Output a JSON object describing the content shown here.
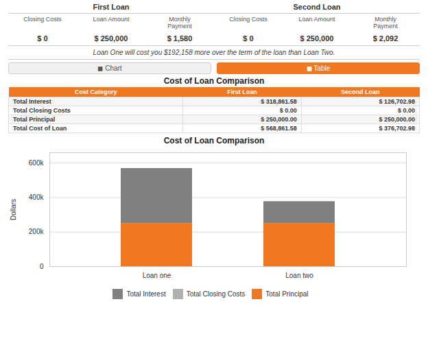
{
  "chart_data": {
    "type": "bar",
    "stacked": true,
    "title": "Cost of Loan Comparison",
    "ylabel": "Dollars",
    "categories": [
      "Loan one",
      "Loan two"
    ],
    "series": [
      {
        "name": "Total Interest",
        "color": "#808080",
        "values": [
          318861.58,
          126702.98
        ]
      },
      {
        "name": "Total Closing Costs",
        "color": "#b0b0b0",
        "values": [
          0.0,
          0.0
        ]
      },
      {
        "name": "Total Principal",
        "color": "#f07820",
        "values": [
          250000.0,
          250000.0
        ]
      }
    ],
    "ylim": [
      0,
      660000
    ],
    "yticks": [
      0,
      {
        "value": 200000,
        "label": "200k"
      },
      {
        "value": 400000,
        "label": "400k"
      },
      {
        "value": 600000,
        "label": "600k"
      }
    ],
    "grid": true,
    "legend": "bottom",
    "annotations": [
      "First Loan",
      "Second Loan",
      "Closing Costs",
      "Loan Amount",
      "Monthly\nPayment",
      "Closing Costs",
      "Loan Amount",
      "Monthly\nPayment",
      "$ 0",
      "$ 250,000",
      "$ 1,580",
      "$ 0",
      "$ 250,000",
      "$ 2,092",
      "Loan One will cost you $192,158 more over the term of the loan than Loan Two.",
      "◼ Chart",
      "◼ Table",
      "Cost of Loan Comparison",
      "Cost Category",
      "First Loan",
      "Second Loan",
      "Total Interest",
      "$ 318,861.58",
      "$ 126,702.98",
      "Total Closing Costs",
      "$ 0.00",
      "$ 0.00",
      "Total Principal",
      "$ 250,000.00",
      "$ 250,000.00",
      "Total Cost of Loan",
      "$ 568,861.58",
      "$ 376,702.98"
    ]
  }
}
